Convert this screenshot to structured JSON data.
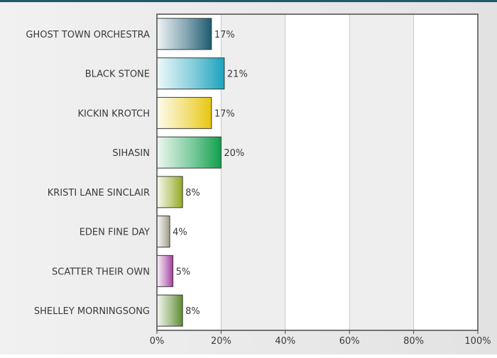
{
  "chart_data": {
    "type": "bar",
    "orientation": "horizontal",
    "categories": [
      "GHOST TOWN ORCHESTRA",
      "BLACK STONE",
      "KICKIN KROTCH",
      "SIHASIN",
      "KRISTI LANE SINCLAIR",
      "EDEN FINE DAY",
      "SCATTER THEIR OWN",
      "SHELLEY MORNINGSONG"
    ],
    "values": [
      17,
      21,
      17,
      20,
      8,
      4,
      5,
      8
    ],
    "value_labels": [
      "17%",
      "21%",
      "17%",
      "20%",
      "8%",
      "4%",
      "5%",
      "8%"
    ],
    "title": "",
    "xlabel": "",
    "ylabel": "",
    "xlim": [
      0,
      100
    ],
    "x_ticks": [
      0,
      20,
      40,
      60,
      80,
      100
    ],
    "x_tick_labels": [
      "0%",
      "20%",
      "40%",
      "60%",
      "80%",
      "100%"
    ],
    "grid": "vertical",
    "legend": "none",
    "bar_colors": [
      "#1d5b71",
      "#1ba3bd",
      "#e8c60f",
      "#10a04c",
      "#93a820",
      "#a09c88",
      "#a33fa0",
      "#5c8b2f"
    ],
    "plot_background_bands": [
      "#ffffff",
      "#eeeeee"
    ]
  }
}
